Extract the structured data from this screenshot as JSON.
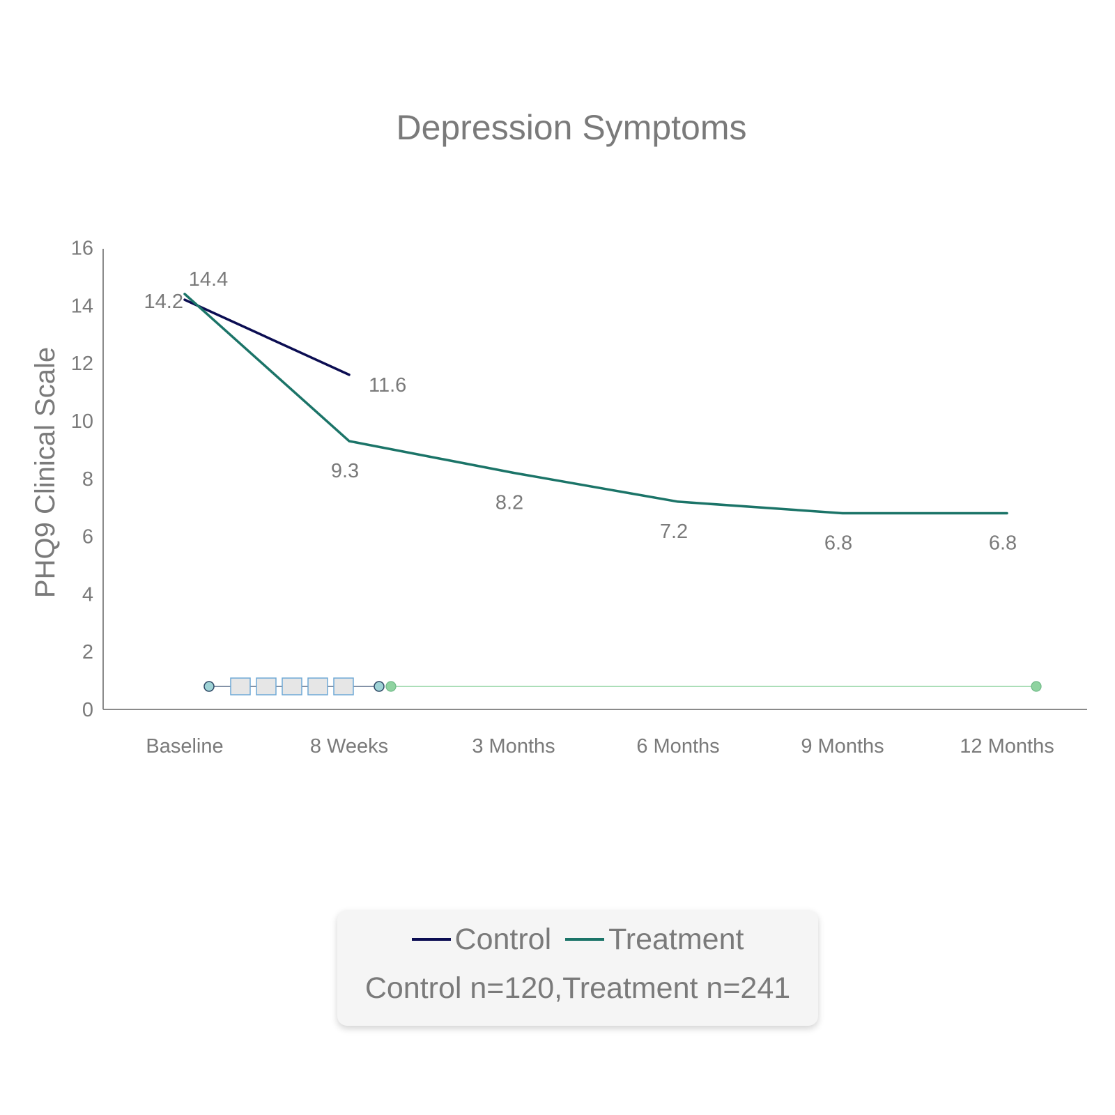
{
  "chart_data": {
    "type": "line",
    "title": "Depression Symptoms",
    "ylabel": "PHQ9 Clinical Scale",
    "xlabel": "",
    "categories": [
      "Baseline",
      "8 Weeks",
      "3 Months",
      "6 Months",
      "9 Months",
      "12 Months"
    ],
    "ylim": [
      0,
      16
    ],
    "yticks": [
      "0",
      "2",
      "4",
      "6",
      "8",
      "10",
      "12",
      "14",
      "16"
    ],
    "grid": false,
    "legend_position": "bottom",
    "series": [
      {
        "name": "Control",
        "color": "#0b0d52",
        "values": [
          14.2,
          11.6,
          null,
          null,
          null,
          null
        ],
        "labels": [
          "14.2",
          "11.6"
        ]
      },
      {
        "name": "Treatment",
        "color": "#1b7468",
        "values": [
          14.4,
          9.3,
          8.2,
          7.2,
          6.8,
          6.8
        ],
        "labels": [
          "14.4",
          "9.3",
          "8.2",
          "7.2",
          "6.8",
          "6.8"
        ]
      }
    ],
    "timeline": {
      "control_track": {
        "color": "#5b8fa8",
        "start_category": "Baseline",
        "end_category": "8 Weeks",
        "session_markers": 5
      },
      "treatment_track": {
        "color": "#8fd3a0",
        "start_category": "8 Weeks",
        "end_category": "12 Months"
      }
    }
  },
  "legend": {
    "items": [
      {
        "label": "Control",
        "color": "#0b0d52"
      },
      {
        "label": "Treatment",
        "color": "#1b7468"
      }
    ],
    "note": "Control n=120,Treatment n=241"
  }
}
